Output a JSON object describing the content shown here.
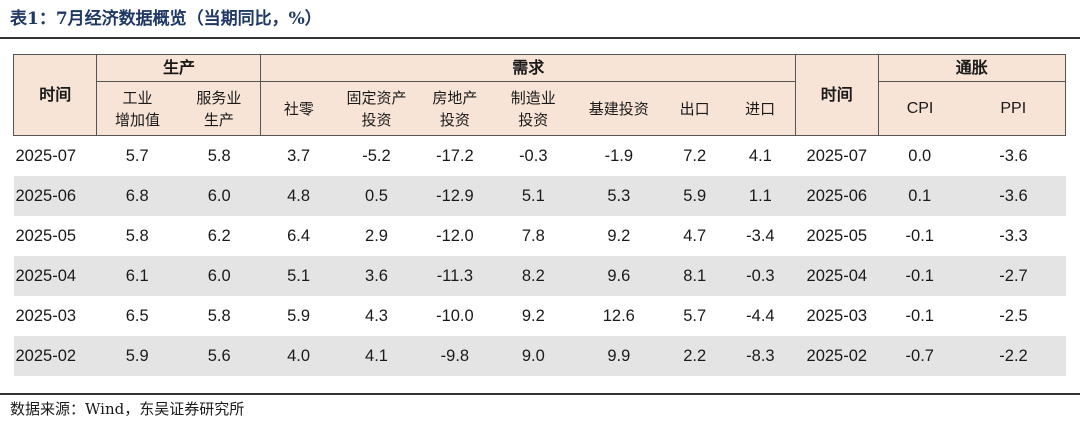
{
  "title": "表1：7月经济数据概览（当期同比，%）",
  "headers": {
    "time": "时间",
    "time2": "时间",
    "group_production": "生产",
    "group_demand": "需求",
    "group_inflation": "通胀",
    "cols": {
      "industrial": "工业\n增加值",
      "services": "服务业\n生产",
      "retail": "社零",
      "fixed_asset": "固定资产\n投资",
      "real_estate": "房地产\n投资",
      "manufacturing": "制造业\n投资",
      "infrastructure": "基建投资",
      "export": "出口",
      "import": "进口",
      "cpi": "CPI",
      "ppi": "PPI"
    }
  },
  "rows": [
    [
      "2025-07",
      "5.7",
      "5.8",
      "3.7",
      "-5.2",
      "-17.2",
      "-0.3",
      "-1.9",
      "7.2",
      "4.1",
      "2025-07",
      "0.0",
      "-3.6"
    ],
    [
      "2025-06",
      "6.8",
      "6.0",
      "4.8",
      "0.5",
      "-12.9",
      "5.1",
      "5.3",
      "5.9",
      "1.1",
      "2025-06",
      "0.1",
      "-3.6"
    ],
    [
      "2025-05",
      "5.8",
      "6.2",
      "6.4",
      "2.9",
      "-12.0",
      "7.8",
      "9.2",
      "4.7",
      "-3.4",
      "2025-05",
      "-0.1",
      "-3.3"
    ],
    [
      "2025-04",
      "6.1",
      "6.0",
      "5.1",
      "3.6",
      "-11.3",
      "8.2",
      "9.6",
      "8.1",
      "-0.3",
      "2025-04",
      "-0.1",
      "-2.7"
    ],
    [
      "2025-03",
      "6.5",
      "5.8",
      "5.9",
      "4.3",
      "-10.0",
      "9.2",
      "12.6",
      "5.7",
      "-4.4",
      "2025-03",
      "-0.1",
      "-2.5"
    ],
    [
      "2025-02",
      "5.9",
      "5.6",
      "4.0",
      "4.1",
      "-9.8",
      "9.0",
      "9.9",
      "2.2",
      "-8.3",
      "2025-02",
      "-0.7",
      "-2.2"
    ]
  ],
  "source": "数据来源：Wind，东吴证券研究所"
}
